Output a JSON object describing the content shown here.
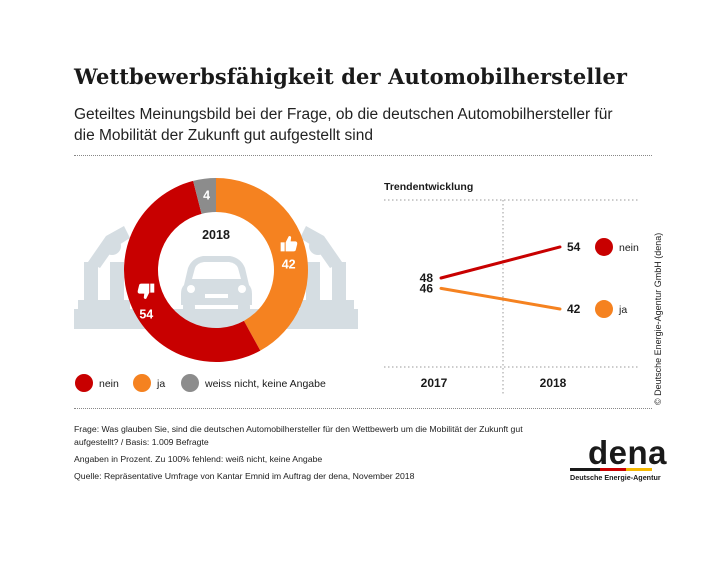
{
  "title": "Wettbewerbsfähigkeit der Automobilhersteller",
  "subtitle": "Geteiltes Meinungsbild bei der Frage, ob die deutschen Automobilhersteller für die Mobilität der Zukunft gut aufgestellt sind",
  "colors": {
    "nein": "#c80000",
    "ja": "#f58220",
    "unknown": "#8c8c8c",
    "background_art": "#d5dde2"
  },
  "chart_data": [
    {
      "type": "pie",
      "title": "2018",
      "categories": [
        "nein",
        "ja",
        "weiss nicht, keine Angabe"
      ],
      "values": [
        54,
        42,
        4
      ],
      "colors": [
        "#c80000",
        "#f58220",
        "#8c8c8c"
      ],
      "icons": {
        "nein": "thumbs-down-icon",
        "ja": "thumbs-up-icon",
        "center": "car-icon"
      },
      "legend": [
        "nein",
        "ja",
        "weiss nicht, keine Angabe"
      ],
      "legend_position": "bottom"
    },
    {
      "type": "line",
      "title": "Trendentwicklung",
      "x": [
        "2017",
        "2018"
      ],
      "series": [
        {
          "name": "nein",
          "values": [
            48,
            54
          ],
          "color": "#c80000"
        },
        {
          "name": "ja",
          "values": [
            46,
            42
          ],
          "color": "#f58220"
        }
      ]
    }
  ],
  "footnotes": {
    "frage": "Frage: Was glauben Sie, sind die deutschen Automobilhersteller für den Wettbewerb um die Mobilität der Zukunft gut aufgestellt? / Basis: 1.009 Befragte",
    "angaben": "Angaben in Prozent. Zu 100% fehlend: weiß nicht, keine Angabe",
    "quelle": "Quelle: Repräsentative Umfrage von Kantar Emnid im Auftrag der dena, November 2018"
  },
  "credit": "© Deutsche Energie-Agentur GmbH (dena)",
  "logo": {
    "word": "dena",
    "subtitle": "Deutsche Energie-Agentur"
  }
}
